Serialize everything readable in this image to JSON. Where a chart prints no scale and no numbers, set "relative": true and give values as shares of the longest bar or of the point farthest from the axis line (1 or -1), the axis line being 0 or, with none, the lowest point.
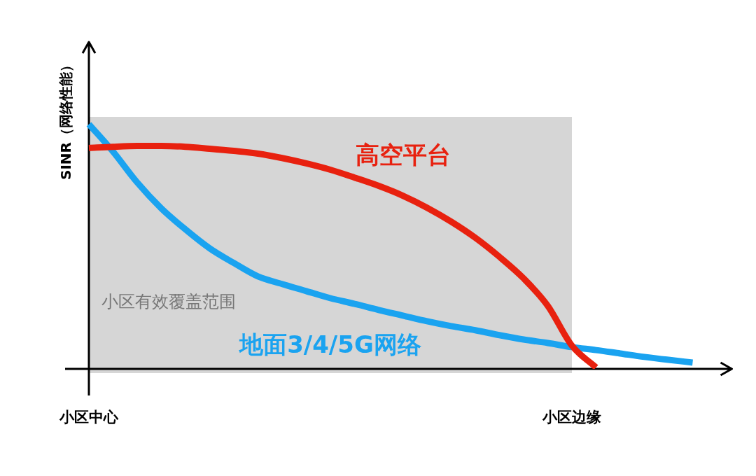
{
  "chart_data": {
    "type": "line",
    "relative": true,
    "ylabel": "SINR（网络性能）",
    "categories": [
      "小区中心",
      null,
      null,
      null,
      null,
      null,
      null,
      null,
      null,
      null,
      null,
      null,
      null,
      null,
      null,
      null,
      null,
      null,
      null,
      null,
      "小区边缘",
      null,
      null,
      null,
      null,
      null
    ],
    "bands": [
      {
        "axis": "x",
        "from": "小区中心",
        "to": "小区边缘",
        "label": "小区有效覆盖范围",
        "color": "#d6d6d6"
      }
    ],
    "series": [
      {
        "name": "高空平台",
        "color": "#e8210f",
        "values": [
          0.903,
          0.908,
          0.911,
          0.911,
          0.908,
          0.9,
          0.891,
          0.88,
          0.862,
          0.84,
          0.814,
          0.782,
          0.748,
          0.708,
          0.659,
          0.602,
          0.536,
          0.458,
          0.37,
          0.258,
          0.095,
          0.006,
          null,
          null,
          null,
          null
        ]
      },
      {
        "name": "地面3/4/5G网络",
        "color": "#1aa3f0",
        "values": [
          1.0,
          0.888,
          0.762,
          0.656,
          0.57,
          0.493,
          0.433,
          0.378,
          0.347,
          0.318,
          0.289,
          0.266,
          0.241,
          0.218,
          0.195,
          0.175,
          0.158,
          0.138,
          0.12,
          0.106,
          0.089,
          0.077,
          0.063,
          0.049,
          0.037,
          0.026
        ]
      }
    ]
  }
}
